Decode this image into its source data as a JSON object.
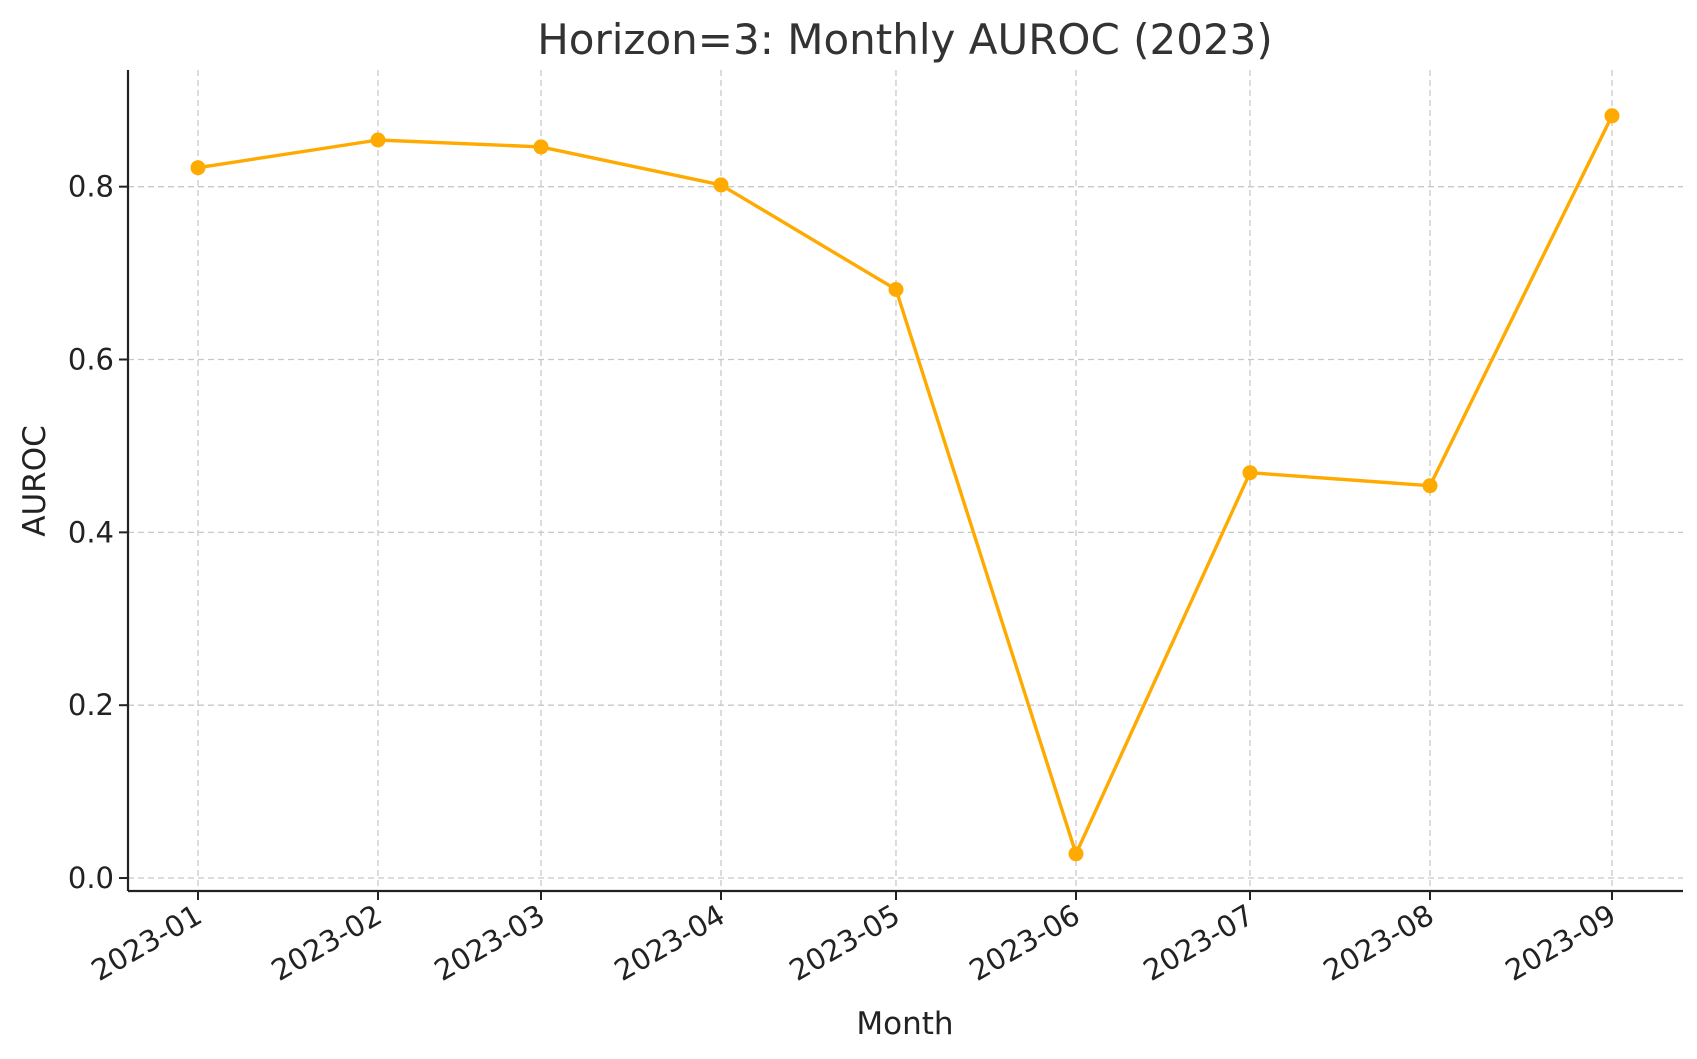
{
  "chart_data": {
    "type": "line",
    "title": "Horizon=3: Monthly AUROC (2023)",
    "xlabel": "Month",
    "ylabel": "AUROC",
    "x": [
      "2023-01",
      "2023-02",
      "2023-03",
      "2023-04",
      "2023-05",
      "2023-06",
      "2023-07",
      "2023-08",
      "2023-09"
    ],
    "yticks": [
      "0.0",
      "0.2",
      "0.4",
      "0.6",
      "0.8"
    ],
    "ylim": [
      -0.015,
      0.935
    ],
    "grid": true,
    "series": [
      {
        "color": "#FFAA00",
        "values": [
          0.822,
          0.854,
          0.846,
          0.802,
          0.681,
          0.028,
          0.469,
          0.454,
          0.882
        ]
      }
    ]
  }
}
